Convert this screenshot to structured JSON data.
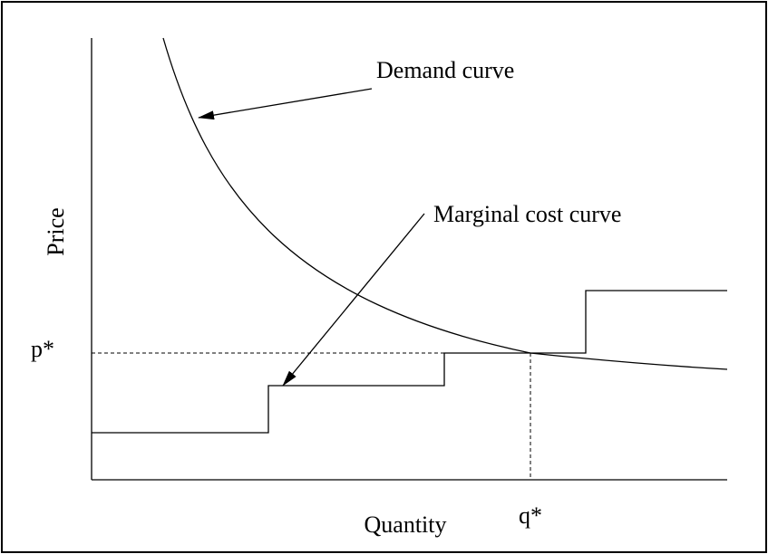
{
  "labels": {
    "demand": "Demand curve",
    "marginal_cost": "Marginal cost curve",
    "y_axis": "Price",
    "x_axis": "Quantity",
    "p_star": "p*",
    "q_star": "q*"
  }
}
